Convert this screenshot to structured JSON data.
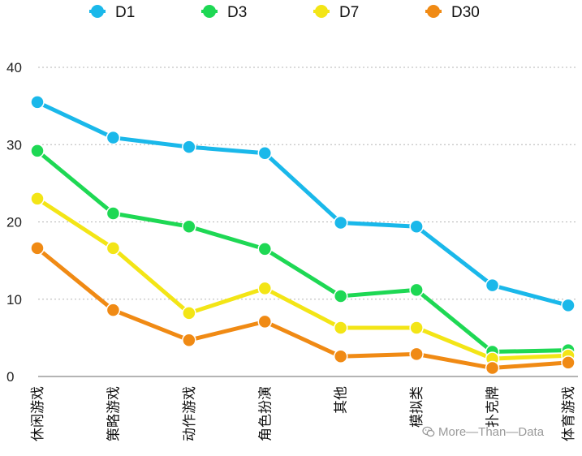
{
  "chart_data": {
    "type": "line",
    "title": "",
    "xlabel": "",
    "ylabel": "",
    "categories": [
      "休闲游戏",
      "策略游戏",
      "动作游戏",
      "角色扮演",
      "其他",
      "模拟类",
      "扑克牌",
      "体育游戏"
    ],
    "yticks": [
      "0",
      "10",
      "20",
      "30",
      "40"
    ],
    "ylim": [
      0,
      40
    ],
    "grid": true,
    "legend": "top",
    "series": [
      {
        "name": "D1",
        "color": "#1ab8ea",
        "values": [
          35.5,
          30.9,
          29.7,
          28.9,
          19.9,
          19.4,
          11.8,
          9.2
        ]
      },
      {
        "name": "D3",
        "color": "#1ed854",
        "values": [
          29.2,
          21.1,
          19.4,
          16.5,
          10.4,
          11.2,
          3.2,
          3.4
        ]
      },
      {
        "name": "D7",
        "color": "#f3e516",
        "values": [
          23.0,
          16.6,
          8.2,
          11.4,
          6.3,
          6.3,
          2.3,
          2.7
        ]
      },
      {
        "name": "D30",
        "color": "#f08a14",
        "values": [
          16.6,
          8.6,
          4.7,
          7.1,
          2.6,
          2.9,
          1.1,
          1.8
        ]
      }
    ]
  },
  "watermark": {
    "icon": "wechat-icon",
    "text": "More—Than—Data"
  }
}
